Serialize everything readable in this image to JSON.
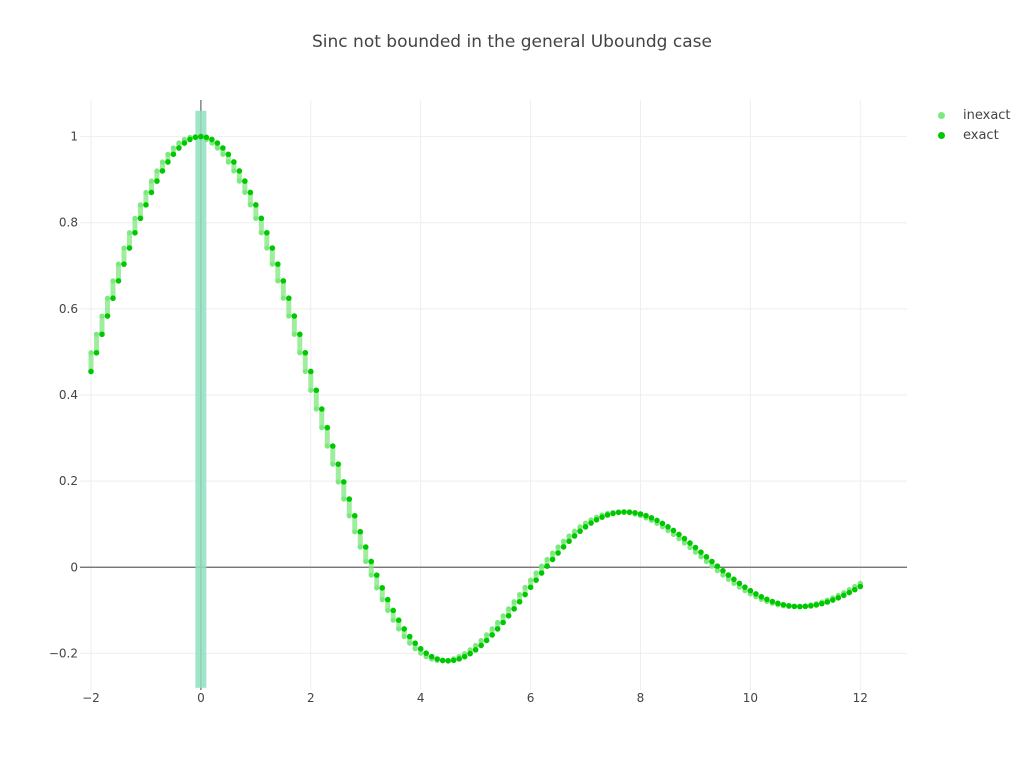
{
  "chart_data": {
    "type": "scatter",
    "title": "Sinc not bounded in the general Uboundg case",
    "xlabel": "",
    "ylabel": "",
    "xlim": [
      -2.2,
      12.85
    ],
    "ylim": [
      -0.285,
      1.085
    ],
    "x_ticks": [
      -2,
      0,
      2,
      4,
      6,
      8,
      10,
      12
    ],
    "x_tick_labels": [
      "−2",
      "0",
      "2",
      "4",
      "6",
      "8",
      "10",
      "12"
    ],
    "y_ticks": [
      -0.2,
      0,
      0.2,
      0.4,
      0.6,
      0.8,
      1
    ],
    "y_tick_labels": [
      "−0.2",
      "0",
      "0.2",
      "0.4",
      "0.6",
      "0.8",
      "1"
    ],
    "grid": true,
    "zero_lines": true,
    "legend_position": "top-right",
    "function": "sin(x)/x",
    "x_start": -2,
    "x_end": 12,
    "x_step": 0.1,
    "interval_width": 0.1,
    "series": [
      {
        "name": "inexact",
        "color": "#7de87d",
        "marker": "dot-with-interval-bars"
      },
      {
        "name": "exact",
        "color": "#00c800",
        "marker": "dot"
      }
    ],
    "unbounded_band": {
      "x_range": [
        -0.1,
        0.1
      ],
      "y_range": [
        -0.28,
        1.06
      ],
      "color": "#8fe0bf"
    }
  }
}
